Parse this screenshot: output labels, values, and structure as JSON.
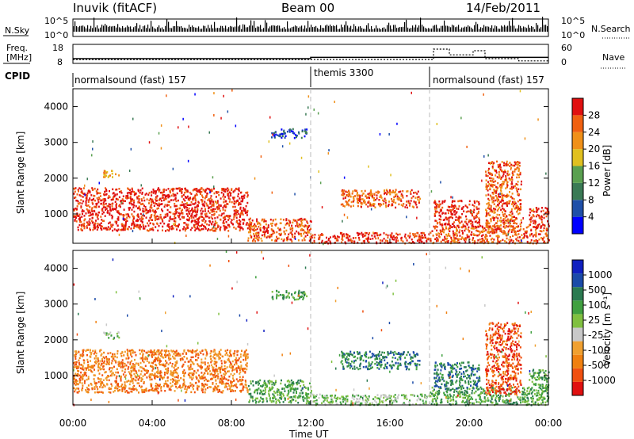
{
  "header": {
    "station": "Inuvik (fitACF)",
    "beam": "Beam 00",
    "date": "14/Feb/2011"
  },
  "noise_panel": {
    "left_label": "N.Sky",
    "right_label": "N.Search",
    "left_ticks": [
      "10^5",
      "10^0"
    ],
    "right_ticks": [
      "10^5",
      "10^0"
    ]
  },
  "freq_panel": {
    "left_label_1": "Freq.",
    "left_label_2": "[MHz]",
    "left_ticks": [
      "18",
      "8"
    ],
    "right_label": "Nave",
    "right_ticks": [
      "60",
      "0"
    ],
    "freq_mhz": 10.5,
    "nave_segments": [
      {
        "t0": 0,
        "t1": 18.2,
        "nave": 12
      },
      {
        "t0": 18.2,
        "t1": 19.0,
        "nave": 45
      },
      {
        "t0": 19.0,
        "t1": 20.2,
        "nave": 27
      },
      {
        "t0": 20.2,
        "t1": 20.8,
        "nave": 40
      },
      {
        "t0": 20.8,
        "t1": 22.5,
        "nave": 15
      },
      {
        "t0": 22.5,
        "t1": 24,
        "nave": 8
      }
    ]
  },
  "cpid": {
    "label": "CPID",
    "segments": [
      {
        "label": "normalsound (fast) 157",
        "start_h": 0
      },
      {
        "label": "themis 3300",
        "start_h": 12
      },
      {
        "label": "normalsound (fast) 157",
        "start_h": 18
      }
    ]
  },
  "colors": {
    "power": [
      "#0000ff",
      "#1f4fa8",
      "#3a7a55",
      "#5aa050",
      "#e0c020",
      "#f09018",
      "#f06010",
      "#e01010"
    ],
    "velocity": [
      "#e01010",
      "#f05010",
      "#f08010",
      "#f0a030",
      "#c8c8c8",
      "#80c040",
      "#40a040",
      "#2a7a50",
      "#1a4aa8",
      "#1020c0"
    ]
  },
  "chart_data": [
    {
      "type": "heatmap",
      "name": "power",
      "ylabel": "Slant Range [km]",
      "colorbar_label": "Power [dB]",
      "colorbar_ticks": [
        "4",
        "8",
        "12",
        "16",
        "20",
        "24",
        "28"
      ],
      "ylim": [
        180,
        4500
      ],
      "xlim": [
        0,
        24
      ],
      "y_ticks": [
        1000,
        2000,
        3000,
        4000
      ],
      "regions": [
        {
          "t0": 0.0,
          "t1": 8.8,
          "r0": 550,
          "r1": 1750,
          "level": 7
        },
        {
          "t0": 8.8,
          "t1": 12.0,
          "r0": 250,
          "r1": 900,
          "level": 6
        },
        {
          "t0": 10.0,
          "t1": 11.8,
          "r0": 3150,
          "r1": 3400,
          "level": 1
        },
        {
          "t0": 1.5,
          "t1": 2.3,
          "r0": 2050,
          "r1": 2250,
          "level": 5
        },
        {
          "t0": 12.0,
          "t1": 18.0,
          "r0": 200,
          "r1": 500,
          "level": 7
        },
        {
          "t0": 13.5,
          "t1": 17.5,
          "r0": 1200,
          "r1": 1700,
          "level": 6
        },
        {
          "t0": 18.0,
          "t1": 24.0,
          "r0": 200,
          "r1": 700,
          "level": 6
        },
        {
          "t0": 18.2,
          "t1": 20.5,
          "r0": 650,
          "r1": 1400,
          "level": 7
        },
        {
          "t0": 20.8,
          "t1": 22.6,
          "r0": 500,
          "r1": 2500,
          "level": 6
        },
        {
          "t0": 23.0,
          "t1": 24.0,
          "r0": 600,
          "r1": 1200,
          "level": 7
        }
      ]
    },
    {
      "type": "heatmap",
      "name": "velocity",
      "ylabel": "Slant Range [km]",
      "colorbar_label": "Velocity [m s⁻¹]",
      "colorbar_ticks": [
        "1000",
        "500",
        "100",
        "25",
        "-25",
        "-100",
        "-500",
        "-1000"
      ],
      "ylim": [
        180,
        4500
      ],
      "xlim": [
        0,
        24
      ],
      "y_ticks": [
        1000,
        2000,
        3000,
        4000
      ],
      "regions": [
        {
          "t0": 0.0,
          "t1": 8.8,
          "r0": 550,
          "r1": 1750,
          "level": 2
        },
        {
          "t0": 8.8,
          "t1": 12.0,
          "r0": 250,
          "r1": 900,
          "level": 6
        },
        {
          "t0": 10.0,
          "t1": 11.8,
          "r0": 3150,
          "r1": 3400,
          "level": 6
        },
        {
          "t0": 1.5,
          "t1": 2.3,
          "r0": 2050,
          "r1": 2250,
          "level": 5
        },
        {
          "t0": 12.0,
          "t1": 18.0,
          "r0": 200,
          "r1": 500,
          "level": 5
        },
        {
          "t0": 13.5,
          "t1": 17.5,
          "r0": 1200,
          "r1": 1700,
          "level": 7
        },
        {
          "t0": 18.0,
          "t1": 24.0,
          "r0": 200,
          "r1": 700,
          "level": 6
        },
        {
          "t0": 18.2,
          "t1": 20.5,
          "r0": 650,
          "r1": 1400,
          "level": 7
        },
        {
          "t0": 20.8,
          "t1": 22.6,
          "r0": 500,
          "r1": 2500,
          "level": 1
        },
        {
          "t0": 23.0,
          "t1": 24.0,
          "r0": 600,
          "r1": 1200,
          "level": 6
        }
      ]
    }
  ],
  "time_axis": {
    "label": "Time UT",
    "ticks": [
      "00:00",
      "04:00",
      "08:00",
      "12:00",
      "16:00",
      "20:00",
      "00:00"
    ]
  }
}
